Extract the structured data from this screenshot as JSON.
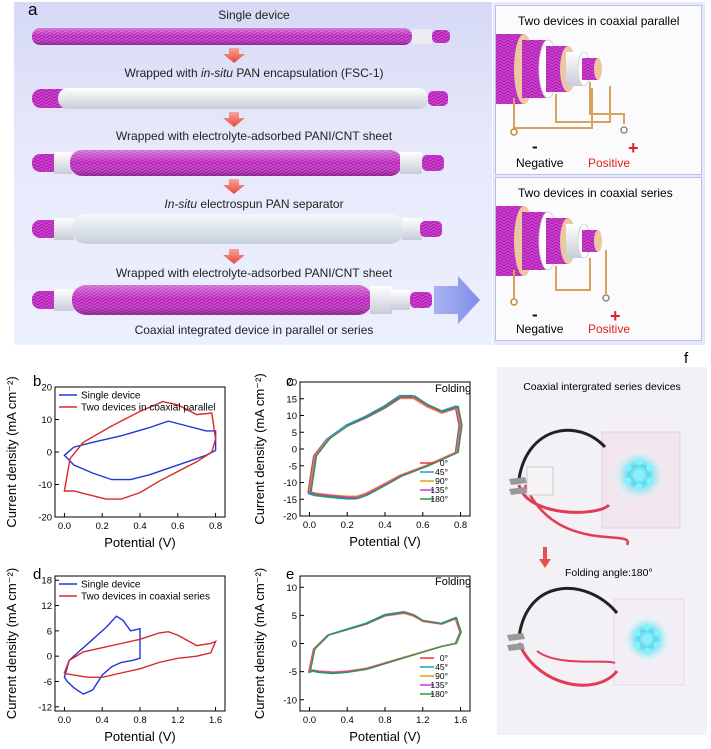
{
  "panel_a": {
    "label": "a",
    "steps": [
      {
        "pre": "Single device",
        "em": "",
        "post": ""
      },
      {
        "pre": "Wrapped with ",
        "em": "in-situ",
        "post": " PAN encapsulation (FSC-1)"
      },
      {
        "pre": "Wrapped with electrolyte-adsorbed PANI/CNT sheet",
        "em": "",
        "post": ""
      },
      {
        "pre": "",
        "em": "In-situ",
        "post": " electrospun PAN separator"
      },
      {
        "pre": "Wrapped with electrolyte-adsorbed PANI/CNT sheet",
        "em": "",
        "post": ""
      },
      {
        "pre": "Coaxial integrated device in parallel or series",
        "em": "",
        "post": ""
      }
    ],
    "parallel_title": "Two devices in coaxial parallel",
    "series_title": "Two devices in coaxial series",
    "negative_label": "Negative",
    "positive_label": "Positive",
    "minus_sign": "-",
    "plus_sign": "+",
    "colors": {
      "device": "#d642d6",
      "sheath_white": "#f2f2f5",
      "separator": "#e8eef6",
      "arrow": "#ef6f6f",
      "positive": "#e0201c"
    }
  },
  "panel_b": {
    "label": "b"
  },
  "panel_c": {
    "label": "c",
    "annotation": "Folding"
  },
  "panel_d": {
    "label": "d"
  },
  "panel_e": {
    "label": "e",
    "annotation": "Folding"
  },
  "panel_f": {
    "label": "f",
    "title": "Coaxial intergrated series devices",
    "caption": "Folding angle:180°"
  },
  "chart_data": [
    {
      "panel": "b",
      "type": "line",
      "xlabel": "Potential (V)",
      "ylabel": "Current density (mA cm⁻²)",
      "xlim": [
        -0.05,
        0.85
      ],
      "ylim": [
        -20,
        20
      ],
      "xticks": [
        "0.0",
        "0.2",
        "0.4",
        "0.6",
        "0.8"
      ],
      "yticks": [
        "-20",
        "-10",
        "0",
        "10",
        "20"
      ],
      "legend_position": "top-left",
      "series": [
        {
          "name": "Single device",
          "color": "#2236d8",
          "x": [
            0.0,
            0.05,
            0.15,
            0.3,
            0.45,
            0.55,
            0.65,
            0.75,
            0.8,
            0.8,
            0.75,
            0.65,
            0.55,
            0.45,
            0.35,
            0.25,
            0.15,
            0.05,
            0.0
          ],
          "y": [
            -1,
            1.5,
            3,
            5,
            7.5,
            9.5,
            8,
            6.5,
            6.5,
            0.5,
            -1,
            -3,
            -5,
            -7,
            -8.5,
            -8.5,
            -6.5,
            -4,
            -1
          ]
        },
        {
          "name": "Two devices in coaxial parallel",
          "color": "#d8282a",
          "x": [
            0.0,
            0.03,
            0.1,
            0.25,
            0.4,
            0.52,
            0.6,
            0.7,
            0.78,
            0.8,
            0.78,
            0.7,
            0.6,
            0.5,
            0.4,
            0.3,
            0.22,
            0.12,
            0.05,
            0.0
          ],
          "y": [
            -12,
            -2,
            3,
            8,
            12.5,
            15.5,
            14.5,
            11.5,
            12,
            4,
            0,
            -3,
            -6,
            -9,
            -12.5,
            -14.5,
            -14.5,
            -13,
            -12,
            -12
          ]
        }
      ]
    },
    {
      "panel": "c",
      "type": "line",
      "xlabel": "Potential (V)",
      "ylabel": "Current density (mA cm⁻²)",
      "xlim": [
        -0.05,
        0.85
      ],
      "ylim": [
        -20,
        20
      ],
      "xticks": [
        "0.0",
        "0.2",
        "0.4",
        "0.6",
        "0.8"
      ],
      "yticks": [
        "-20",
        "-15",
        "-10",
        "-5",
        "0",
        "5",
        "10",
        "15",
        "20"
      ],
      "legend_position": "bottom-right",
      "series": [
        {
          "name": "0°",
          "color": "#e8322a"
        },
        {
          "name": "45°",
          "color": "#1e9ad8"
        },
        {
          "name": "90°",
          "color": "#e89a20"
        },
        {
          "name": "135°",
          "color": "#d038d6"
        },
        {
          "name": "180°",
          "color": "#2a9a3a"
        }
      ],
      "shape": {
        "x": [
          0.0,
          0.03,
          0.1,
          0.2,
          0.3,
          0.4,
          0.48,
          0.55,
          0.62,
          0.7,
          0.78,
          0.8,
          0.78,
          0.7,
          0.62,
          0.55,
          0.48,
          0.4,
          0.3,
          0.25,
          0.2,
          0.1,
          0.03,
          0.0
        ],
        "y": [
          -13,
          -2,
          3,
          7,
          9.5,
          12.5,
          15.5,
          15.5,
          13,
          11,
          12.5,
          7,
          -1,
          -3,
          -5,
          -6.5,
          -8,
          -10.5,
          -13.5,
          -14.5,
          -14.5,
          -14,
          -13.5,
          -13
        ]
      }
    },
    {
      "panel": "d",
      "type": "line",
      "xlabel": "Potential (V)",
      "ylabel": "Current density (mA cm⁻²)",
      "xlim": [
        -0.1,
        1.7
      ],
      "ylim": [
        -13,
        19
      ],
      "xticks": [
        "0.0",
        "0.4",
        "0.8",
        "1.2",
        "1.6"
      ],
      "yticks": [
        "-12",
        "-6",
        "0",
        "6",
        "12",
        "18"
      ],
      "legend_position": "top-left",
      "series": [
        {
          "name": "Single device",
          "color": "#2236d8",
          "x": [
            0.0,
            0.05,
            0.15,
            0.3,
            0.45,
            0.55,
            0.62,
            0.7,
            0.8,
            0.8,
            0.72,
            0.6,
            0.5,
            0.4,
            0.3,
            0.2,
            0.1,
            0.03,
            0.0
          ],
          "y": [
            -5,
            -1,
            1,
            4,
            7,
            9.5,
            8.5,
            6,
            6.5,
            -0.5,
            -1,
            -1.5,
            -2.5,
            -4.5,
            -8,
            -9,
            -7.5,
            -6,
            -5
          ]
        },
        {
          "name": "Two devices in coaxial series",
          "color": "#d8282a",
          "x": [
            0.0,
            0.05,
            0.2,
            0.4,
            0.6,
            0.8,
            1.0,
            1.1,
            1.2,
            1.4,
            1.55,
            1.6,
            1.55,
            1.4,
            1.2,
            1.0,
            0.8,
            0.6,
            0.4,
            0.25,
            0.1,
            0.03,
            0.0
          ],
          "y": [
            -4,
            -1,
            1,
            2,
            3,
            4,
            5.5,
            5.8,
            5,
            2.5,
            3,
            3.5,
            0.8,
            0,
            -0.5,
            -1.5,
            -3,
            -4,
            -5,
            -5,
            -4.5,
            -4.2,
            -4
          ]
        }
      ]
    },
    {
      "panel": "e",
      "type": "line",
      "xlabel": "Potential (V)",
      "ylabel": "Current density (mA cm⁻²)",
      "xlim": [
        -0.1,
        1.7
      ],
      "ylim": [
        -12,
        12
      ],
      "xticks": [
        "0.0",
        "0.4",
        "0.8",
        "1.2",
        "1.6"
      ],
      "yticks": [
        "-10",
        "-5",
        "0",
        "5",
        "10"
      ],
      "legend_position": "bottom-right",
      "series": [
        {
          "name": "0°",
          "color": "#e8322a"
        },
        {
          "name": "45°",
          "color": "#1e9ad8"
        },
        {
          "name": "90°",
          "color": "#e89a20"
        },
        {
          "name": "135°",
          "color": "#d038d6"
        },
        {
          "name": "180°",
          "color": "#2a9a3a"
        }
      ],
      "shape": {
        "x": [
          0.0,
          0.05,
          0.2,
          0.4,
          0.6,
          0.8,
          1.0,
          1.1,
          1.2,
          1.4,
          1.55,
          1.6,
          1.55,
          1.4,
          1.2,
          1.0,
          0.8,
          0.6,
          0.4,
          0.25,
          0.1,
          0.03,
          0.0
        ],
        "y": [
          -5,
          -1,
          1.5,
          2.5,
          3.5,
          5,
          5.5,
          5,
          4,
          3.5,
          4.5,
          2,
          0,
          -0.5,
          -1.5,
          -2.5,
          -3.5,
          -4.5,
          -5,
          -5.2,
          -5,
          -4.8,
          -5
        ]
      }
    }
  ]
}
